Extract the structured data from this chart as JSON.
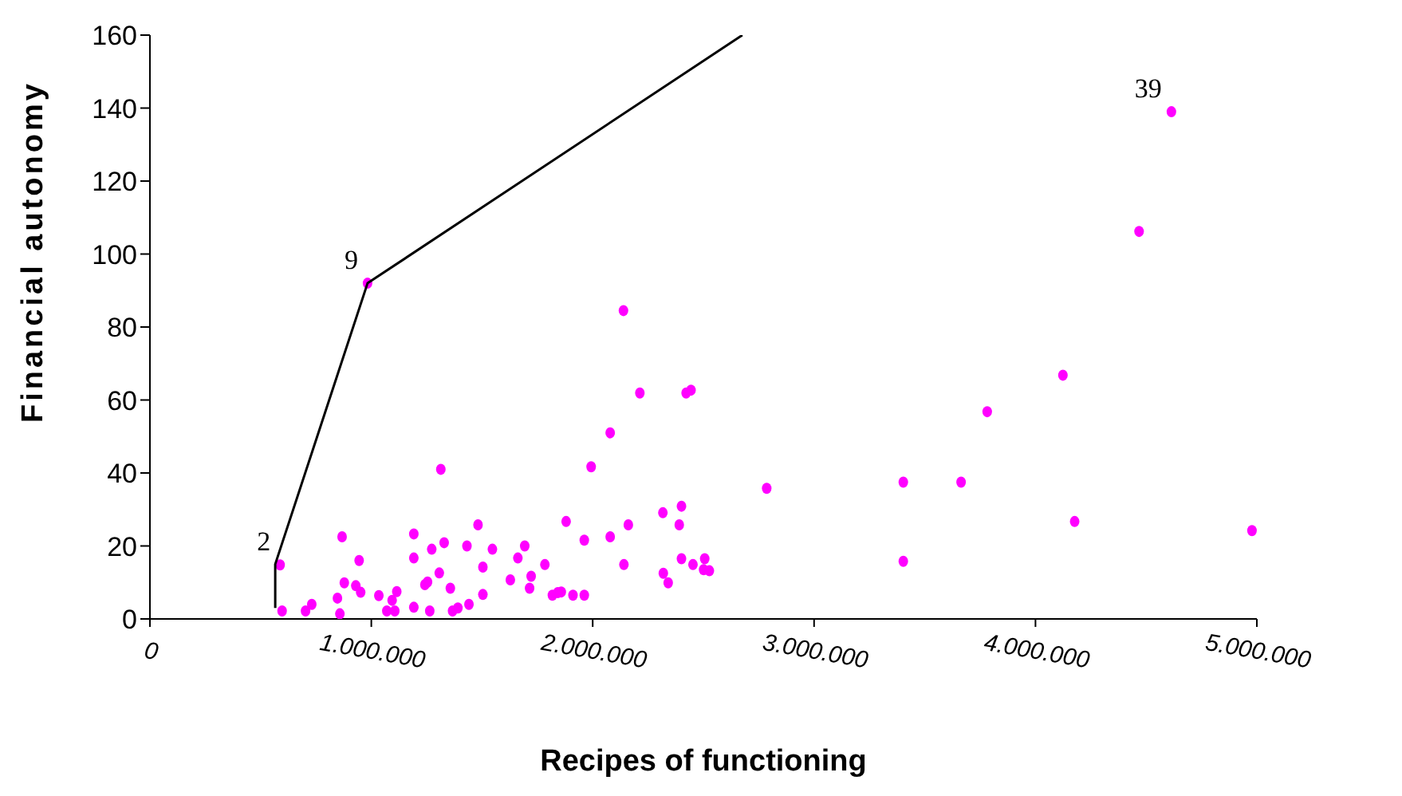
{
  "chart_data": {
    "type": "scatter",
    "xlabel": "Recipes of functioning",
    "ylabel": "Financial autonomy",
    "xlim": [
      0,
      5000000
    ],
    "ylim": [
      0,
      160
    ],
    "xticks": [
      0,
      {
        "value": 1000000,
        "label": "1.000.000"
      },
      {
        "value": 2000000,
        "label": "2.000.000"
      },
      {
        "value": 3000000,
        "label": "3.000.000"
      },
      {
        "value": 4000000,
        "label": "4.000.000"
      },
      {
        "value": 5000000,
        "label": "5.000.000"
      }
    ],
    "yticks": [
      0,
      20,
      40,
      60,
      80,
      100,
      120,
      140,
      160
    ],
    "marker": "circle",
    "series": [
      {
        "color": "#ff00ff",
        "x": [
          588000,
          597000,
          703000,
          731000,
          868000,
          945000,
          878000,
          847000,
          858000,
          930000,
          952000,
          1034000,
          1115000,
          1094000,
          1070000,
          1106000,
          1192000,
          1192000,
          1192000,
          1264000,
          1242000,
          1254000,
          1307000,
          1273000,
          1329000,
          1314000,
          1357000,
          1367000,
          1391000,
          1441000,
          1432000,
          1482000,
          1504000,
          1504000,
          1547000,
          1628000,
          1662000,
          1693000,
          1722000,
          1715000,
          1784000,
          1818000,
          1842000,
          1858000,
          1880000,
          1911000,
          1962000,
          1962000,
          1993000,
          2079000,
          2079000,
          2139000,
          2141000,
          2161000,
          2213000,
          2317000,
          2319000,
          2341000,
          2391000,
          2401000,
          2401000,
          2422000,
          2444000,
          2453000,
          2506000,
          2501000,
          2527000,
          2786000,
          3403000,
          3403000,
          3664000,
          3782000,
          4124000,
          4177000,
          4468000,
          4614000,
          4978000,
          983000
        ],
        "values": [
          14.8,
          2.2,
          2.2,
          4,
          22.5,
          16,
          9.9,
          5.7,
          1.4,
          9.1,
          7.3,
          6.4,
          7.5,
          5.1,
          2.2,
          2.2,
          23.3,
          16.7,
          3.2,
          2.2,
          9.4,
          10.1,
          12.6,
          19.1,
          20.9,
          41,
          8.4,
          2.2,
          3,
          4,
          20,
          25.8,
          14.2,
          6.7,
          19.1,
          10.7,
          16.7,
          20,
          11.7,
          8.4,
          14.9,
          6.5,
          7.2,
          7.4,
          26.7,
          6.5,
          6.5,
          21.6,
          41.7,
          51,
          22.5,
          84.5,
          14.9,
          25.8,
          61.9,
          29.1,
          12.5,
          9.9,
          25.8,
          30.9,
          16.5,
          61.9,
          62.7,
          14.9,
          16.5,
          13.5,
          13.2,
          35.8,
          37.5,
          15.8,
          37.5,
          56.8,
          66.8,
          26.7,
          106.2,
          139,
          24.2,
          92
        ]
      },
      {
        "type": "line",
        "marker": "none",
        "color": "#000000",
        "x": [
          566000,
          566000,
          983000,
          2676000
        ],
        "values": [
          3,
          15,
          92,
          160
        ]
      }
    ],
    "annotations": [
      {
        "text": "2",
        "x": 588000,
        "y": 14.8
      },
      {
        "text": "9",
        "x": 983000,
        "y": 92
      },
      {
        "text": "39",
        "x": 4614000,
        "y": 139
      }
    ]
  }
}
